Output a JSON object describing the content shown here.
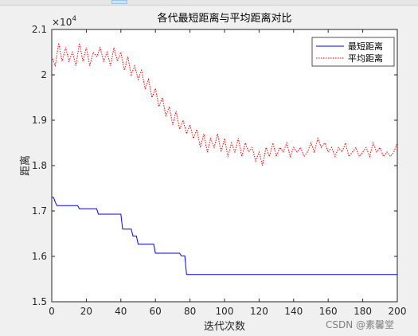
{
  "chart_data": {
    "type": "line",
    "title": "各代最短距离与平均距离对比",
    "xlabel": "迭代次数",
    "ylabel": "距离",
    "y_exponent_label": "×10",
    "y_exponent_power": "4",
    "xlim": [
      0,
      200
    ],
    "ylim": [
      1.5,
      2.1
    ],
    "x_ticks": [
      0,
      20,
      40,
      60,
      80,
      100,
      120,
      140,
      160,
      180,
      200
    ],
    "y_ticks": [
      1.5,
      1.6,
      1.7,
      1.8,
      1.9,
      2,
      2.1
    ],
    "x_tick_labels": [
      "0",
      "20",
      "40",
      "60",
      "80",
      "100",
      "120",
      "140",
      "160",
      "180",
      "200"
    ],
    "y_tick_labels": [
      "1.5",
      "1.6",
      "1.7",
      "1.8",
      "1.9",
      "2",
      "2.1"
    ],
    "grid": false,
    "legend_position": "top-right",
    "series": [
      {
        "name": "最短距离",
        "color": "#0000ff",
        "style": "solid",
        "x": [
          0,
          1,
          2,
          3,
          15,
          16,
          26,
          27,
          40,
          41,
          46,
          47,
          49,
          50,
          59,
          60,
          74,
          75,
          77,
          78,
          200
        ],
        "y": [
          1.73,
          1.73,
          1.72,
          1.712,
          1.712,
          1.705,
          1.705,
          1.693,
          1.693,
          1.66,
          1.66,
          1.645,
          1.645,
          1.627,
          1.627,
          1.607,
          1.607,
          1.601,
          1.601,
          1.56,
          1.56
        ]
      },
      {
        "name": "平均距离",
        "color": "#ff0000",
        "style": "dotted",
        "x": [
          0,
          2,
          4,
          6,
          8,
          10,
          12,
          14,
          16,
          18,
          20,
          22,
          24,
          26,
          28,
          30,
          32,
          34,
          36,
          38,
          40,
          42,
          44,
          46,
          48,
          50,
          52,
          54,
          56,
          58,
          60,
          62,
          64,
          66,
          68,
          70,
          72,
          74,
          76,
          78,
          80,
          82,
          84,
          86,
          88,
          90,
          92,
          94,
          96,
          98,
          100,
          102,
          104,
          106,
          108,
          110,
          112,
          114,
          116,
          118,
          120,
          122,
          124,
          126,
          128,
          130,
          132,
          134,
          136,
          138,
          140,
          142,
          144,
          146,
          148,
          150,
          152,
          154,
          156,
          158,
          160,
          162,
          164,
          166,
          168,
          170,
          172,
          174,
          176,
          178,
          180,
          182,
          184,
          186,
          188,
          190,
          192,
          194,
          196,
          198,
          200
        ],
        "y": [
          2.04,
          2.02,
          2.07,
          2.03,
          2.06,
          2.03,
          2.05,
          2.02,
          2.07,
          2.03,
          2.06,
          2.02,
          2.05,
          2.04,
          2.06,
          2.03,
          2.05,
          2.02,
          2.06,
          2.03,
          2.05,
          2.01,
          2.04,
          2.0,
          2.02,
          1.99,
          2.01,
          1.97,
          1.99,
          1.95,
          1.97,
          1.93,
          1.95,
          1.91,
          1.93,
          1.89,
          1.92,
          1.88,
          1.9,
          1.87,
          1.89,
          1.86,
          1.88,
          1.84,
          1.87,
          1.83,
          1.86,
          1.84,
          1.87,
          1.83,
          1.86,
          1.82,
          1.85,
          1.83,
          1.86,
          1.82,
          1.85,
          1.83,
          1.84,
          1.81,
          1.83,
          1.8,
          1.84,
          1.82,
          1.85,
          1.82,
          1.84,
          1.83,
          1.85,
          1.82,
          1.84,
          1.83,
          1.84,
          1.82,
          1.83,
          1.85,
          1.83,
          1.86,
          1.84,
          1.85,
          1.83,
          1.84,
          1.82,
          1.84,
          1.83,
          1.85,
          1.82,
          1.83,
          1.84,
          1.82,
          1.83,
          1.84,
          1.82,
          1.85,
          1.83,
          1.84,
          1.82,
          1.83,
          1.82,
          1.83,
          1.85
        ]
      }
    ]
  },
  "watermark": "CSDN @素馨堂"
}
